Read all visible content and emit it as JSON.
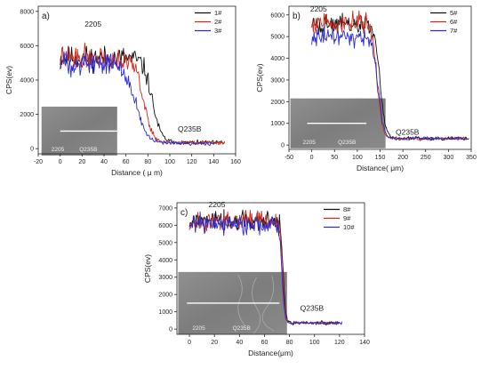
{
  "chart_data": [
    {
      "id": "a",
      "type": "line",
      "panel_label": "a)",
      "xlabel": "Distance ( μ m)",
      "ylabel": "CPS(ev)",
      "xlim": [
        -20,
        160
      ],
      "ylim": [
        -300,
        8300
      ],
      "xticks": [
        -20,
        0,
        20,
        40,
        60,
        80,
        100,
        120,
        140,
        160
      ],
      "yticks": [
        0,
        2000,
        4000,
        6000,
        8000
      ],
      "legend_position": "top-right",
      "annotations": [
        {
          "text": "2205",
          "x": 30,
          "y": 7100
        },
        {
          "text": "Q235B",
          "x": 118,
          "y": 1000
        }
      ],
      "inset": {
        "labels": [
          "2205",
          "Q235B"
        ],
        "line_x_range": [
          0,
          58
        ],
        "bbox_x": [
          -17,
          52
        ],
        "bbox_y": [
          -400,
          2450
        ]
      },
      "series": [
        {
          "name": "1#",
          "color": "#111111",
          "profile": {
            "start": 0,
            "end": 150,
            "plateau": 5300,
            "baseline": 350,
            "center": 84,
            "width": 4,
            "noise": 480,
            "seed": 11
          }
        },
        {
          "name": "2#",
          "color": "#cc2a1a",
          "profile": {
            "start": 0,
            "end": 150,
            "plateau": 5300,
            "baseline": 350,
            "center": 76,
            "width": 4,
            "noise": 480,
            "seed": 22
          }
        },
        {
          "name": "3#",
          "color": "#2b2bd8",
          "profile": {
            "start": 0,
            "end": 140,
            "plateau": 5000,
            "baseline": 300,
            "center": 69,
            "width": 5,
            "noise": 480,
            "seed": 33
          }
        }
      ]
    },
    {
      "id": "b",
      "type": "line",
      "panel_label": "b)",
      "xlabel": "Distance( μm)",
      "ylabel": "CPS(ev)",
      "xlim": [
        -50,
        350
      ],
      "ylim": [
        -200,
        6400
      ],
      "xticks": [
        -50,
        0,
        50,
        100,
        150,
        200,
        250,
        300,
        350
      ],
      "yticks": [
        0,
        1000,
        2000,
        3000,
        4000,
        5000,
        6000
      ],
      "legend_position": "top-right",
      "annotations": [
        {
          "text": "2205",
          "x": 15,
          "y": 6150
        },
        {
          "text": "Q235B",
          "x": 210,
          "y": 480
        }
      ],
      "inset": {
        "labels": [
          "2205",
          "Q235B"
        ],
        "line_x_range": [
          -10,
          120
        ],
        "bbox_x": [
          -47,
          162
        ],
        "bbox_y": [
          -150,
          2150
        ]
      },
      "series": [
        {
          "name": "5#",
          "color": "#111111",
          "profile": {
            "start": 0,
            "end": 345,
            "plateau": 5550,
            "baseline": 300,
            "center": 150,
            "width": 6,
            "noise": 330,
            "seed": 44
          }
        },
        {
          "name": "6#",
          "color": "#cc2a1a",
          "profile": {
            "start": 0,
            "end": 340,
            "plateau": 5650,
            "baseline": 300,
            "center": 143,
            "width": 6,
            "noise": 330,
            "seed": 55
          }
        },
        {
          "name": "7#",
          "color": "#2b2bd8",
          "profile": {
            "start": 0,
            "end": 340,
            "plateau": 5000,
            "baseline": 300,
            "center": 146,
            "width": 6,
            "noise": 280,
            "seed": 66
          }
        }
      ]
    },
    {
      "id": "c",
      "type": "line",
      "panel_label": "c)",
      "xlabel": "Distance(μm)",
      "ylabel": "CPS(ev)",
      "xlim": [
        -10,
        140
      ],
      "ylim": [
        -300,
        7300
      ],
      "xticks": [
        0,
        20,
        40,
        60,
        80,
        100,
        120,
        140
      ],
      "yticks": [
        0,
        1000,
        2000,
        3000,
        4000,
        5000,
        6000,
        7000
      ],
      "legend_position": "top-right",
      "annotations": [
        {
          "text": "2205",
          "x": 22,
          "y": 7050
        },
        {
          "text": "Q235B",
          "x": 98,
          "y": 1050
        }
      ],
      "inset": {
        "labels": [
          "2205",
          "Q235B"
        ],
        "line_x_range": [
          -2,
          72
        ],
        "bbox_x": [
          -9,
          78
        ],
        "bbox_y": [
          -300,
          3300
        ]
      },
      "series": [
        {
          "name": "8#",
          "color": "#111111",
          "profile": {
            "start": 0,
            "end": 120,
            "plateau": 6200,
            "baseline": 350,
            "center": 75,
            "width": 1.0,
            "noise": 420,
            "seed": 77
          }
        },
        {
          "name": "9#",
          "color": "#cc2a1a",
          "profile": {
            "start": 0,
            "end": 120,
            "plateau": 6200,
            "baseline": 350,
            "center": 74.5,
            "width": 1.0,
            "noise": 380,
            "seed": 88
          }
        },
        {
          "name": "10#",
          "color": "#2b2bd8",
          "profile": {
            "start": 0,
            "end": 122,
            "plateau": 6100,
            "baseline": 350,
            "center": 74,
            "width": 1.0,
            "noise": 380,
            "seed": 99
          }
        }
      ]
    }
  ]
}
